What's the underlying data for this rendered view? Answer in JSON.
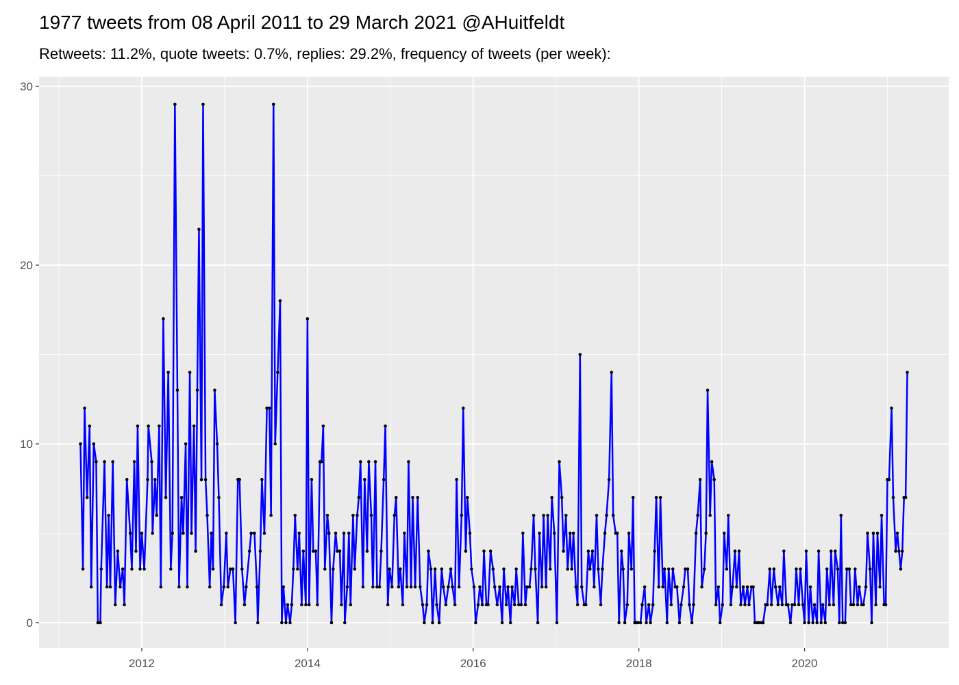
{
  "chart_data": {
    "type": "line",
    "title": "1977 tweets from 08 April 2011 to 29 March 2021 @AHuitfeldt",
    "subtitle": "Retweets: 11.2%, quote tweets: 0.7%, replies: 29.2%, frequency of tweets (per week):",
    "color": "#0000ff",
    "marker_color": "#000000",
    "grid": true,
    "xlim": [
      2010.76,
      2021.74
    ],
    "xticks": [
      2012,
      2014,
      2016,
      2018,
      2020
    ],
    "ylim": [
      -1.42,
      30.54
    ],
    "yticks": [
      0,
      10,
      20,
      30
    ],
    "x": [
      2011.26,
      2011.29,
      2011.31,
      2011.34,
      2011.37,
      2011.39,
      2011.42,
      2011.45,
      2011.47,
      2011.5,
      2011.51,
      2011.55,
      2011.58,
      2011.6,
      2011.62,
      2011.65,
      2011.68,
      2011.71,
      2011.74,
      2011.77,
      2011.79,
      2011.82,
      2011.86,
      2011.88,
      2011.91,
      2011.93,
      2011.95,
      2011.98,
      2012.0,
      2012.03,
      2012.07,
      2012.08,
      2012.12,
      2012.13,
      2012.16,
      2012.18,
      2012.21,
      2012.23,
      2012.26,
      2012.29,
      2012.32,
      2012.35,
      2012.37,
      2012.4,
      2012.43,
      2012.45,
      2012.48,
      2012.5,
      2012.53,
      2012.55,
      2012.58,
      2012.6,
      2012.63,
      2012.65,
      2012.67,
      2012.69,
      2012.72,
      2012.74,
      2012.77,
      2012.79,
      2012.82,
      2012.84,
      2012.86,
      2012.88,
      2012.91,
      2012.93,
      2012.96,
      2012.99,
      2013.02,
      2013.04,
      2013.07,
      2013.1,
      2013.13,
      2013.16,
      2013.18,
      2013.21,
      2013.24,
      2013.26,
      2013.3,
      2013.32,
      2013.36,
      2013.39,
      2013.4,
      2013.43,
      2013.45,
      2013.48,
      2013.51,
      2013.54,
      2013.56,
      2013.59,
      2013.61,
      2013.64,
      2013.67,
      2013.69,
      2013.71,
      2013.74,
      2013.76,
      2013.79,
      2013.81,
      2013.83,
      2013.85,
      2013.88,
      2013.9,
      2013.93,
      2013.95,
      2013.98,
      2014.0,
      2014.02,
      2014.05,
      2014.07,
      2014.1,
      2014.12,
      2014.15,
      2014.17,
      2014.19,
      2014.21,
      2014.24,
      2014.26,
      2014.29,
      2014.31,
      2014.34,
      2014.36,
      2014.39,
      2014.41,
      2014.44,
      2014.45,
      2014.48,
      2014.5,
      2014.52,
      2014.55,
      2014.57,
      2014.6,
      2014.62,
      2014.64,
      2014.67,
      2014.69,
      2014.72,
      2014.74,
      2014.77,
      2014.79,
      2014.82,
      2014.84,
      2014.87,
      2014.89,
      2014.92,
      2014.94,
      2014.97,
      2014.99,
      2015.02,
      2015.05,
      2015.07,
      2015.1,
      2015.12,
      2015.15,
      2015.17,
      2015.2,
      2015.22,
      2015.25,
      2015.27,
      2015.3,
      2015.33,
      2015.36,
      2015.39,
      2015.41,
      2015.44,
      2015.46,
      2015.49,
      2015.51,
      2015.54,
      2015.56,
      2015.59,
      2015.62,
      2015.64,
      2015.67,
      2015.7,
      2015.73,
      2015.75,
      2015.78,
      2015.8,
      2015.83,
      2015.86,
      2015.88,
      2015.91,
      2015.93,
      2015.96,
      2015.98,
      2016.01,
      2016.03,
      2016.06,
      2016.08,
      2016.11,
      2016.13,
      2016.16,
      2016.18,
      2016.21,
      2016.24,
      2016.26,
      2016.29,
      2016.32,
      2016.35,
      2016.37,
      2016.4,
      2016.42,
      2016.45,
      2016.47,
      2016.5,
      2016.52,
      2016.55,
      2016.58,
      2016.6,
      2016.63,
      2016.65,
      2016.68,
      2016.7,
      2016.73,
      2016.75,
      2016.78,
      2016.8,
      2016.83,
      2016.85,
      2016.88,
      2016.9,
      2016.93,
      2016.95,
      2016.98,
      2017.01,
      2017.04,
      2017.07,
      2017.09,
      2017.12,
      2017.14,
      2017.17,
      2017.19,
      2017.21,
      2017.24,
      2017.26,
      2017.29,
      2017.31,
      2017.34,
      2017.36,
      2017.39,
      2017.41,
      2017.44,
      2017.46,
      2017.49,
      2017.51,
      2017.54,
      2017.56,
      2017.59,
      2017.61,
      2017.64,
      2017.67,
      2017.69,
      2017.72,
      2017.74,
      2017.76,
      2017.79,
      2017.81,
      2017.83,
      2017.86,
      2017.88,
      2017.91,
      2017.93,
      2017.95,
      2017.97,
      2017.99,
      2018.02,
      2018.04,
      2018.07,
      2018.09,
      2018.12,
      2018.14,
      2018.17,
      2018.19,
      2018.21,
      2018.24,
      2018.26,
      2018.29,
      2018.31,
      2018.34,
      2018.36,
      2018.39,
      2018.41,
      2018.44,
      2018.46,
      2018.49,
      2018.51,
      2018.54,
      2018.56,
      2018.59,
      2018.61,
      2018.64,
      2018.66,
      2018.69,
      2018.71,
      2018.74,
      2018.76,
      2018.79,
      2018.81,
      2018.83,
      2018.86,
      2018.88,
      2018.91,
      2018.93,
      2018.96,
      2018.98,
      2019.01,
      2019.03,
      2019.06,
      2019.08,
      2019.11,
      2019.13,
      2019.16,
      2019.18,
      2019.21,
      2019.23,
      2019.26,
      2019.28,
      2019.31,
      2019.33,
      2019.36,
      2019.38,
      2019.4,
      2019.43,
      2019.45,
      2019.48,
      2019.5,
      2019.53,
      2019.55,
      2019.58,
      2019.6,
      2019.63,
      2019.65,
      2019.68,
      2019.7,
      2019.73,
      2019.75,
      2019.78,
      2019.8,
      2019.83,
      2019.85,
      2019.88,
      2019.9,
      2019.93,
      2019.95,
      2019.98,
      2020.0,
      2020.02,
      2020.05,
      2020.07,
      2020.1,
      2020.12,
      2020.15,
      2020.17,
      2020.2,
      2020.22,
      2020.25,
      2020.27,
      2020.3,
      2020.32,
      2020.35,
      2020.37,
      2020.4,
      2020.42,
      2020.44,
      2020.46,
      2020.49,
      2020.51,
      2020.54,
      2020.56,
      2020.59,
      2020.61,
      2020.64,
      2020.66,
      2020.69,
      2020.71,
      2020.74,
      2020.76,
      2020.79,
      2020.81,
      2020.83,
      2020.86,
      2020.88,
      2020.91,
      2020.93,
      2020.96,
      2020.98,
      2021.0,
      2021.02,
      2021.05,
      2021.07,
      2021.1,
      2021.12,
      2021.14,
      2021.16,
      2021.18,
      2021.2,
      2021.22,
      2021.24
    ],
    "values": [
      10,
      3,
      12,
      7,
      11,
      2,
      10,
      9,
      0,
      0,
      3,
      9,
      2,
      6,
      2,
      9,
      1,
      4,
      2,
      3,
      1,
      8,
      5,
      3,
      9,
      4,
      11,
      3,
      5,
      3,
      8,
      11,
      9,
      5,
      8,
      6,
      11,
      2,
      17,
      7,
      14,
      3,
      5,
      29,
      13,
      2,
      7,
      5,
      10,
      2,
      14,
      5,
      11,
      4,
      13,
      22,
      8,
      29,
      8,
      6,
      2,
      5,
      3,
      13,
      10,
      7,
      1,
      2,
      5,
      2,
      3,
      3,
      0,
      8,
      8,
      3,
      1,
      2,
      4,
      5,
      5,
      2,
      0,
      4,
      8,
      5,
      12,
      12,
      6,
      29,
      10,
      14,
      18,
      0,
      2,
      0,
      1,
      0,
      1,
      3,
      6,
      3,
      5,
      1,
      4,
      1,
      17,
      1,
      8,
      4,
      4,
      1,
      9,
      9,
      11,
      3,
      6,
      5,
      0,
      3,
      5,
      4,
      4,
      1,
      5,
      0,
      2,
      5,
      1,
      6,
      3,
      6,
      7,
      9,
      2,
      8,
      4,
      9,
      6,
      2,
      9,
      2,
      2,
      4,
      8,
      11,
      1,
      3,
      2,
      6,
      7,
      2,
      3,
      1,
      5,
      2,
      9,
      2,
      7,
      2,
      7,
      2,
      1,
      0,
      1,
      4,
      3,
      0,
      3,
      1,
      0,
      3,
      2,
      1,
      2,
      3,
      2,
      1,
      8,
      2,
      6,
      12,
      4,
      7,
      5,
      3,
      2,
      0,
      1,
      2,
      1,
      4,
      1,
      1,
      4,
      3,
      2,
      1,
      2,
      0,
      3,
      1,
      2,
      0,
      2,
      1,
      3,
      1,
      1,
      5,
      1,
      2,
      2,
      3,
      6,
      3,
      0,
      5,
      2,
      6,
      2,
      6,
      3,
      7,
      5,
      0,
      9,
      7,
      4,
      6,
      3,
      5,
      3,
      5,
      2,
      1,
      15,
      2,
      1,
      1,
      4,
      3,
      4,
      2,
      6,
      3,
      1,
      3,
      5,
      6,
      8,
      14,
      6,
      5,
      5,
      0,
      4,
      3,
      0,
      1,
      5,
      3,
      7,
      0,
      0,
      0,
      0,
      1,
      2,
      0,
      1,
      0,
      1,
      4,
      7,
      2,
      7,
      2,
      3,
      0,
      3,
      1,
      3,
      2,
      2,
      0,
      1,
      2,
      3,
      3,
      1,
      0,
      1,
      5,
      6,
      8,
      2,
      3,
      5,
      13,
      6,
      9,
      8,
      1,
      2,
      0,
      1,
      5,
      3,
      6,
      1,
      2,
      4,
      2,
      4,
      1,
      2,
      1,
      2,
      1,
      2,
      2,
      0,
      0,
      0,
      0,
      0,
      1,
      1,
      3,
      1,
      3,
      2,
      1,
      2,
      1,
      4,
      1,
      1,
      0,
      1,
      1,
      3,
      1,
      3,
      1,
      0,
      4,
      0,
      2,
      0,
      1,
      0,
      4,
      0,
      1,
      0,
      3,
      1,
      4,
      1,
      4,
      3,
      0,
      6,
      0,
      0,
      3,
      3,
      1,
      1,
      3,
      1,
      2,
      1,
      1,
      2,
      5,
      3,
      0,
      5,
      1,
      5,
      2,
      6,
      1,
      1,
      8,
      8,
      12,
      7,
      4,
      5,
      4,
      3,
      4,
      7,
      7,
      14
    ]
  }
}
